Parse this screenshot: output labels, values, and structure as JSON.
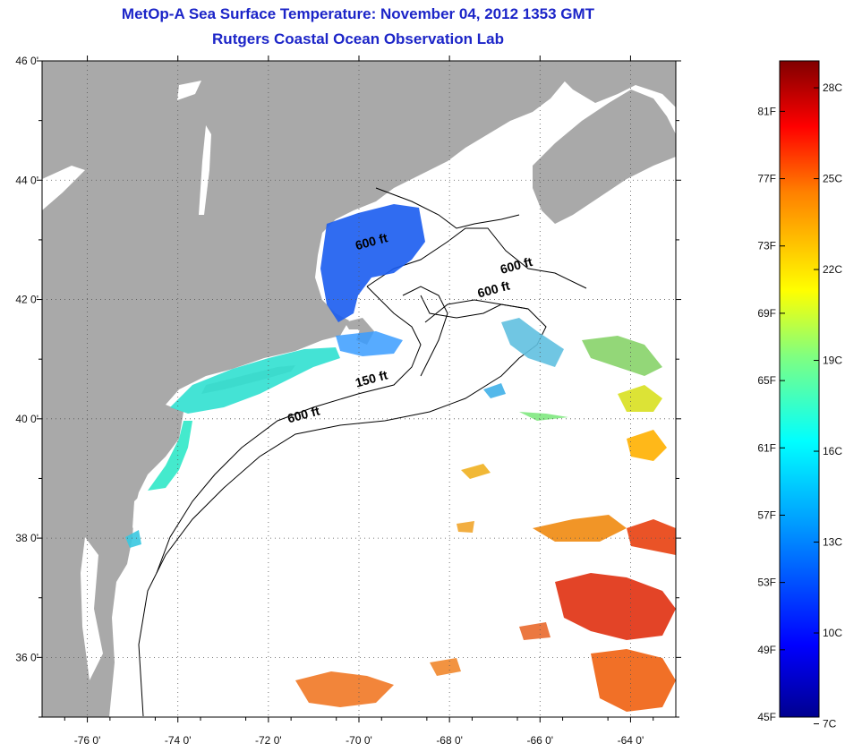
{
  "title": {
    "line1": "MetOp-A Sea Surface Temperature:  November 04, 2012 1353 GMT",
    "line2": "Rutgers Coastal Ocean Observation Lab"
  },
  "map": {
    "lon_range": [
      -77,
      -63
    ],
    "lat_range": [
      35,
      46
    ],
    "lon_ticks": [
      -76,
      -74,
      -72,
      -70,
      -68,
      -66,
      -64
    ],
    "lon_tick_labels": [
      "-76 0'",
      "-74 0'",
      "-72 0'",
      "-70 0'",
      "-68 0'",
      "-66 0'",
      "-64 0'"
    ],
    "lat_ticks": [
      36,
      38,
      40,
      42,
      44,
      46
    ],
    "lat_tick_labels": [
      "36 0'",
      "38 0'",
      "40 0'",
      "42 0'",
      "44 0'",
      "46 0'"
    ],
    "grid": "dotted",
    "land_color": "#a9a9a9",
    "ocean_color": "#ffffff",
    "contour_labels": [
      {
        "text": "600 ft",
        "lon": -69.7,
        "lat": 42.9
      },
      {
        "text": "600 ft",
        "lon": -66.5,
        "lat": 42.5
      },
      {
        "text": "600 ft",
        "lon": -67.0,
        "lat": 42.1
      },
      {
        "text": "150 ft",
        "lon": -69.7,
        "lat": 40.6
      },
      {
        "text": "600 ft",
        "lon": -71.2,
        "lat": 40.0
      }
    ]
  },
  "colorbar": {
    "range_f": [
      45,
      84
    ],
    "f_labels": [
      "45F",
      "49F",
      "53F",
      "57F",
      "61F",
      "65F",
      "69F",
      "73F",
      "77F",
      "81F"
    ],
    "f_values": [
      45,
      49,
      53,
      57,
      61,
      65,
      69,
      73,
      77,
      81
    ],
    "c_labels": [
      "7C",
      "10C",
      "13C",
      "16C",
      "19C",
      "22C",
      "25C",
      "28C"
    ],
    "c_values": [
      7,
      10,
      13,
      16,
      19,
      22,
      25,
      28
    ],
    "colors": [
      "#00008f",
      "#0000ff",
      "#00a0ff",
      "#00ffff",
      "#80ff80",
      "#ffff00",
      "#ff8000",
      "#ff0000",
      "#800000"
    ]
  }
}
